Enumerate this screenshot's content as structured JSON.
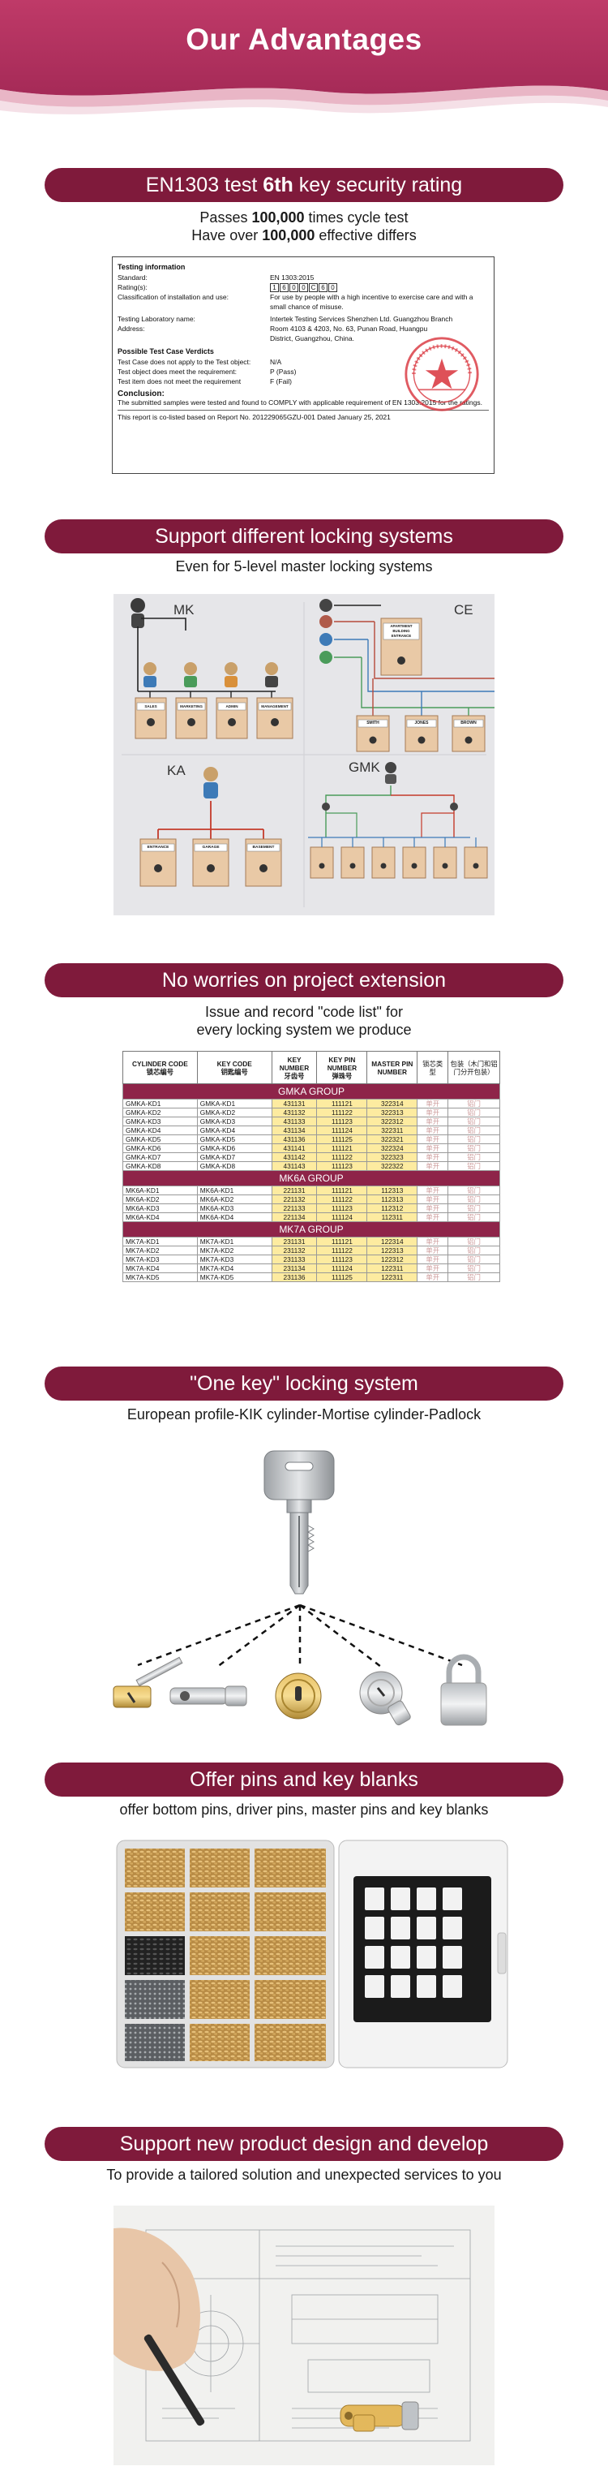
{
  "header": {
    "title": "Our Advantages",
    "bg_color": "#b03160"
  },
  "sections": {
    "security": {
      "title_before": "EN1303 test ",
      "title_bold": "6th",
      "title_after": " key security rating",
      "line1_before": "Passes ",
      "line1_bold": "100,000",
      "line1_after": " times cycle test",
      "line2_before": "Have over ",
      "line2_bold": "100,000",
      "line2_after": " effective differs"
    },
    "locking": {
      "title": "Support different locking systems",
      "subtitle": "Even for 5-level master locking systems",
      "labels": {
        "mk": "MK",
        "ce": "CE",
        "ka": "KA",
        "gmk": "GMK"
      },
      "mk_doors": [
        "SALES",
        "MARKETING",
        "ADMIN",
        "MANAGEMENT"
      ],
      "ce_doors": [
        "SMITH",
        "JONES",
        "BROWN"
      ],
      "ce_entrance": [
        "APARTMENT",
        "BUILDING",
        "ENTRANCE"
      ],
      "ka_doors": [
        "ENTRANCE",
        "GARAGE",
        "BASEMENT"
      ]
    },
    "extension": {
      "title": "No worries on project extension",
      "subtitle_1": "Issue and record \"code list\" for",
      "subtitle_2": "every locking system we produce"
    },
    "onekey": {
      "title": "\"One key\" locking system",
      "subtitle": "European profile-KIK cylinder-Mortise cylinder-Padlock"
    },
    "pins": {
      "title": "Offer pins and key blanks",
      "subtitle": "offer bottom pins, driver pins, master pins and key blanks"
    },
    "design": {
      "title": "Support new product design and develop",
      "subtitle": "To provide a tailored solution and unexpected services to you"
    }
  },
  "report": {
    "h_info": "Testing information",
    "standard_k": "Standard:",
    "standard_v": "EN 1303:2015",
    "rating_k": "Rating(s):",
    "rating_digits": [
      "1",
      "6",
      "0",
      "0",
      "C",
      "6",
      "0"
    ],
    "class_k": "Classification of installation and use:",
    "class_v": "For use by people with a high incentive to exercise care and with a small chance of misuse.",
    "lab_k": "Testing Laboratory name:",
    "lab_v": "Intertek Testing Services Shenzhen Ltd. Guangzhou Branch",
    "addr_k": "Address:",
    "addr_v": "Room 4103 & 4203, No. 63, Punan Road, Huangpu District, Guangzhou, China.",
    "h_verdicts": "Possible Test Case Verdicts",
    "v1_k": "Test Case does not apply to the Test object:",
    "v1_v": "N/A",
    "v2_k": "Test object does meet the requirement:",
    "v2_v": "P (Pass)",
    "v3_k": "Test item does not meet the requirement",
    "v3_v": "F (Fail)",
    "h_conclusion": "Conclusion:",
    "conclusion_v": "The submitted samples were tested and found to COMPLY with applicable requirement of EN 1303:2015 for the ratings.",
    "footer": "This report is co-listed based on Report No. 201229065GZU-001 Dated January 25, 2021"
  },
  "codelist": {
    "headers": {
      "c1": "CYLINDER CODE",
      "c1cn": "锁芯编号",
      "c2": "KEY CODE",
      "c2cn": "钥匙编号",
      "c3": "KEY NUMBER",
      "c3cn": "牙齿号",
      "c4": "KEY PIN NUMBER",
      "c4cn": "弹珠号",
      "c5": "MASTER PIN NUMBER",
      "c6": "锁芯类型",
      "c7": "包装（木门和铝门分开包装）"
    },
    "groups": [
      {
        "name": "GMKA GROUP",
        "rows": [
          [
            "GMKA-KD1",
            "GMKA-KD1",
            "431131",
            "111121",
            "322314",
            "单开",
            "铝门"
          ],
          [
            "GMKA-KD2",
            "GMKA-KD2",
            "431132",
            "111122",
            "322313",
            "单开",
            "铝门"
          ],
          [
            "GMKA-KD3",
            "GMKA-KD3",
            "431133",
            "111123",
            "322312",
            "单开",
            "铝门"
          ],
          [
            "GMKA-KD4",
            "GMKA-KD4",
            "431134",
            "111124",
            "322311",
            "单开",
            "铝门"
          ],
          [
            "GMKA-KD5",
            "GMKA-KD5",
            "431136",
            "111125",
            "322321",
            "单开",
            "铝门"
          ],
          [
            "GMKA-KD6",
            "GMKA-KD6",
            "431141",
            "111121",
            "322324",
            "单开",
            "铝门"
          ],
          [
            "GMKA-KD7",
            "GMKA-KD7",
            "431142",
            "111122",
            "322323",
            "单开",
            "铝门"
          ],
          [
            "GMKA-KD8",
            "GMKA-KD8",
            "431143",
            "111123",
            "322322",
            "单开",
            "铝门"
          ]
        ]
      },
      {
        "name": "MK6A GROUP",
        "rows": [
          [
            "MK6A-KD1",
            "MK6A-KD1",
            "221131",
            "111121",
            "112313",
            "单开",
            "铝门"
          ],
          [
            "MK6A-KD2",
            "MK6A-KD2",
            "221132",
            "111122",
            "112313",
            "单开",
            "铝门"
          ],
          [
            "MK6A-KD3",
            "MK6A-KD3",
            "221133",
            "111123",
            "112312",
            "单开",
            "铝门"
          ],
          [
            "MK6A-KD4",
            "MK6A-KD4",
            "221134",
            "111124",
            "112311",
            "单开",
            "铝门"
          ]
        ]
      },
      {
        "name": "MK7A GROUP",
        "rows": [
          [
            "MK7A-KD1",
            "MK7A-KD1",
            "231131",
            "111121",
            "122314",
            "单开",
            "铝门"
          ],
          [
            "MK7A-KD2",
            "MK7A-KD2",
            "231132",
            "111122",
            "122313",
            "单开",
            "铝门"
          ],
          [
            "MK7A-KD3",
            "MK7A-KD3",
            "231133",
            "111123",
            "122312",
            "单开",
            "铝门"
          ],
          [
            "MK7A-KD4",
            "MK7A-KD4",
            "231134",
            "111124",
            "122311",
            "单开",
            "铝门"
          ],
          [
            "MK7A-KD5",
            "MK7A-KD5",
            "231136",
            "111125",
            "122311",
            "单开",
            "铝门"
          ]
        ]
      }
    ]
  }
}
